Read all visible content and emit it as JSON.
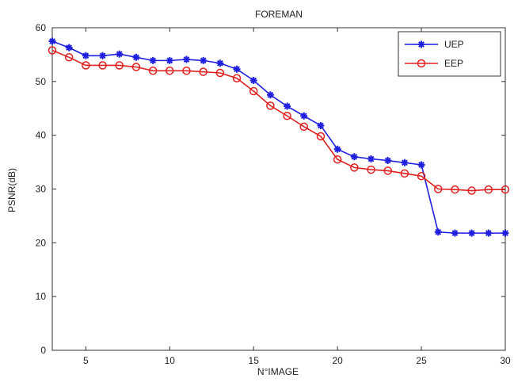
{
  "chart_data": {
    "type": "line",
    "title": "FOREMAN",
    "xlabel": "N°IMAGE",
    "ylabel": "PSNR(dB)",
    "xlim": [
      3,
      30
    ],
    "ylim": [
      0,
      60
    ],
    "xticks": [
      5,
      10,
      15,
      20,
      25,
      30
    ],
    "yticks": [
      0,
      10,
      20,
      30,
      40,
      50,
      60
    ],
    "grid": false,
    "legend_position": "top-right",
    "series": [
      {
        "name": "UEP",
        "color": "#1f1fe0",
        "marker": "star",
        "x": [
          3,
          4,
          5,
          6,
          7,
          8,
          9,
          10,
          11,
          12,
          13,
          14,
          15,
          16,
          17,
          18,
          19,
          20,
          21,
          22,
          23,
          24,
          25,
          26,
          27,
          28,
          29,
          30
        ],
        "y": [
          57.5,
          56.3,
          54.8,
          54.8,
          55.1,
          54.5,
          53.9,
          53.9,
          54.1,
          53.9,
          53.4,
          52.3,
          50.2,
          47.5,
          45.4,
          43.6,
          41.8,
          37.4,
          36.0,
          35.6,
          35.3,
          34.9,
          34.5,
          22.0,
          21.8,
          21.8,
          21.8,
          21.8
        ]
      },
      {
        "name": "EEP",
        "color": "#e01f1f",
        "marker": "circle",
        "x": [
          3,
          4,
          5,
          6,
          7,
          8,
          9,
          10,
          11,
          12,
          13,
          14,
          15,
          16,
          17,
          18,
          19,
          20,
          21,
          22,
          23,
          24,
          25,
          26,
          27,
          28,
          29,
          30
        ],
        "y": [
          55.8,
          54.5,
          53.0,
          53.0,
          53.0,
          52.7,
          52.0,
          52.0,
          52.0,
          51.8,
          51.6,
          50.6,
          48.2,
          45.5,
          43.6,
          41.6,
          39.8,
          35.5,
          34.0,
          33.6,
          33.4,
          32.9,
          32.4,
          30.0,
          29.9,
          29.7,
          29.9,
          29.9
        ]
      }
    ]
  }
}
